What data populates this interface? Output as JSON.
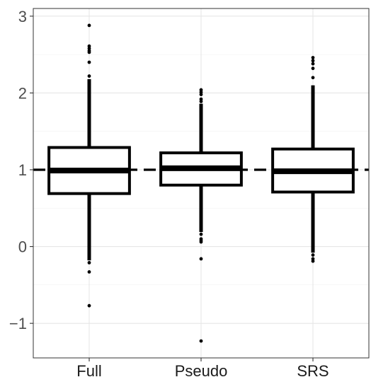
{
  "chart_data": {
    "type": "boxplot",
    "title": "",
    "xlabel": "",
    "ylabel": "",
    "categories": [
      "Full",
      "Pseudo",
      "SRS"
    ],
    "ylim": [
      -1.45,
      3.1
    ],
    "yticks": [
      -1,
      0,
      1,
      2,
      3
    ],
    "ytick_labels": [
      "−1",
      "0",
      "1",
      "2",
      "3"
    ],
    "grid": true,
    "reference_line": {
      "y": 1,
      "style": "dashed"
    },
    "boxes": [
      {
        "name": "Full",
        "lower_whisker": -0.18,
        "q1": 0.69,
        "median": 0.99,
        "q3": 1.29,
        "upper_whisker": 2.18,
        "outliers": [
          2.88,
          2.61,
          2.58,
          2.55,
          2.53,
          2.4,
          2.22,
          -0.21,
          -0.33,
          -0.77
        ]
      },
      {
        "name": "Pseudo",
        "lower_whisker": 0.19,
        "q1": 0.8,
        "median": 1.02,
        "q3": 1.22,
        "upper_whisker": 1.86,
        "outliers": [
          2.04,
          2.01,
          1.98,
          1.92,
          1.89,
          0.16,
          0.1,
          0.08,
          0.06,
          -0.16,
          -1.23
        ]
      },
      {
        "name": "SRS",
        "lower_whisker": -0.08,
        "q1": 0.71,
        "median": 0.98,
        "q3": 1.27,
        "upper_whisker": 2.1,
        "outliers": [
          2.46,
          2.42,
          2.38,
          2.32,
          2.2,
          -0.11,
          -0.16,
          -0.19
        ]
      }
    ]
  }
}
